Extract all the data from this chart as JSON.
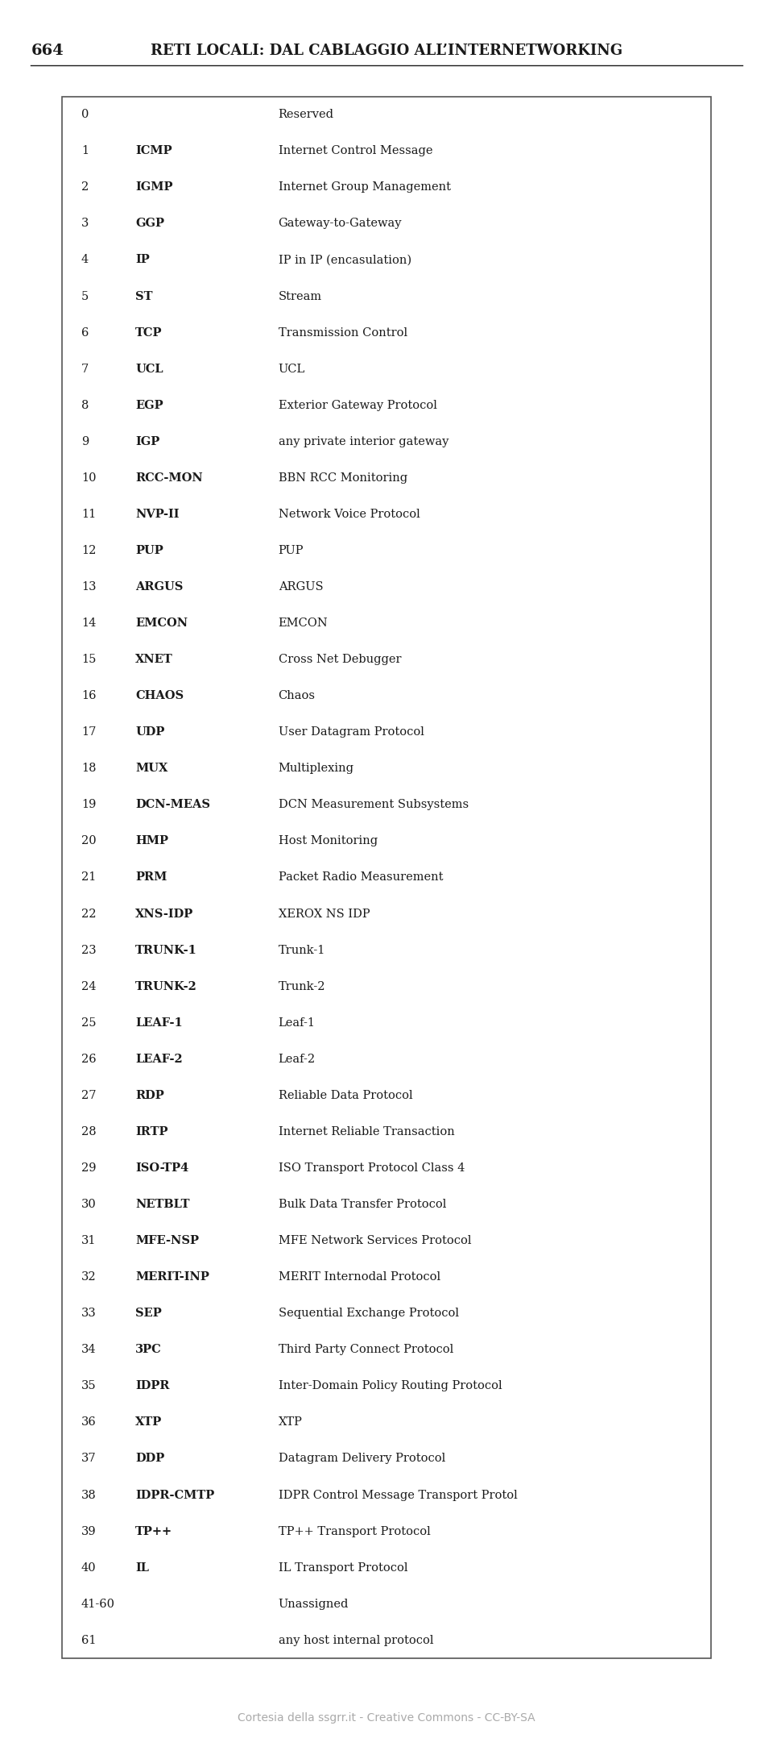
{
  "page_number": "664",
  "header_title": "RETI LOCALI:",
  "header_subtitle": "DAL CABLAGGIO ALL’INTERNETWORKING",
  "footer_text": "Cortesia della ssgrr.it - Creative Commons - CC-BY-SA",
  "background_color": "#ffffff",
  "header_color": "#1a1a1a",
  "footer_color": "#aaaaaa",
  "table_border_color": "#555555",
  "text_color": "#1a1a1a",
  "rows": [
    [
      "0",
      "",
      "Reserved"
    ],
    [
      "1",
      "ICMP",
      "Internet Control Message"
    ],
    [
      "2",
      "IGMP",
      "Internet Group Management"
    ],
    [
      "3",
      "GGP",
      "Gateway-to-Gateway"
    ],
    [
      "4",
      "IP",
      "IP in IP (encasulation)"
    ],
    [
      "5",
      "ST",
      "Stream"
    ],
    [
      "6",
      "TCP",
      "Transmission Control"
    ],
    [
      "7",
      "UCL",
      "UCL"
    ],
    [
      "8",
      "EGP",
      "Exterior Gateway Protocol"
    ],
    [
      "9",
      "IGP",
      "any private interior gateway"
    ],
    [
      "10",
      "RCC-MON",
      "BBN RCC Monitoring"
    ],
    [
      "11",
      "NVP-II",
      "Network Voice Protocol"
    ],
    [
      "12",
      "PUP",
      "PUP"
    ],
    [
      "13",
      "ARGUS",
      "ARGUS"
    ],
    [
      "14",
      "EMCON",
      "EMCON"
    ],
    [
      "15",
      "XNET",
      "Cross Net Debugger"
    ],
    [
      "16",
      "CHAOS",
      "Chaos"
    ],
    [
      "17",
      "UDP",
      "User Datagram Protocol"
    ],
    [
      "18",
      "MUX",
      "Multiplexing"
    ],
    [
      "19",
      "DCN-MEAS",
      "DCN Measurement Subsystems"
    ],
    [
      "20",
      "HMP",
      "Host Monitoring"
    ],
    [
      "21",
      "PRM",
      "Packet Radio Measurement"
    ],
    [
      "22",
      "XNS-IDP",
      "XEROX NS IDP"
    ],
    [
      "23",
      "TRUNK-1",
      "Trunk-1"
    ],
    [
      "24",
      "TRUNK-2",
      "Trunk-2"
    ],
    [
      "25",
      "LEAF-1",
      "Leaf-1"
    ],
    [
      "26",
      "LEAF-2",
      "Leaf-2"
    ],
    [
      "27",
      "RDP",
      "Reliable Data Protocol"
    ],
    [
      "28",
      "IRTP",
      "Internet Reliable Transaction"
    ],
    [
      "29",
      "ISO-TP4",
      "ISO Transport Protocol Class 4"
    ],
    [
      "30",
      "NETBLT",
      "Bulk Data Transfer Protocol"
    ],
    [
      "31",
      "MFE-NSP",
      "MFE Network Services Protocol"
    ],
    [
      "32",
      "MERIT-INP",
      "MERIT Internodal Protocol"
    ],
    [
      "33",
      "SEP",
      "Sequential Exchange Protocol"
    ],
    [
      "34",
      "3PC",
      "Third Party Connect Protocol"
    ],
    [
      "35",
      "IDPR",
      "Inter-Domain Policy Routing Protocol"
    ],
    [
      "36",
      "XTP",
      "XTP"
    ],
    [
      "37",
      "DDP",
      "Datagram Delivery Protocol"
    ],
    [
      "38",
      "IDPR-CMTP",
      "IDPR Control Message Transport Protol"
    ],
    [
      "39",
      "TP++",
      "TP++ Transport Protocol"
    ],
    [
      "40",
      "IL",
      "IL Transport Protocol"
    ],
    [
      "41-60",
      "",
      "Unassigned"
    ],
    [
      "61",
      "",
      "any host internal protocol"
    ]
  ]
}
